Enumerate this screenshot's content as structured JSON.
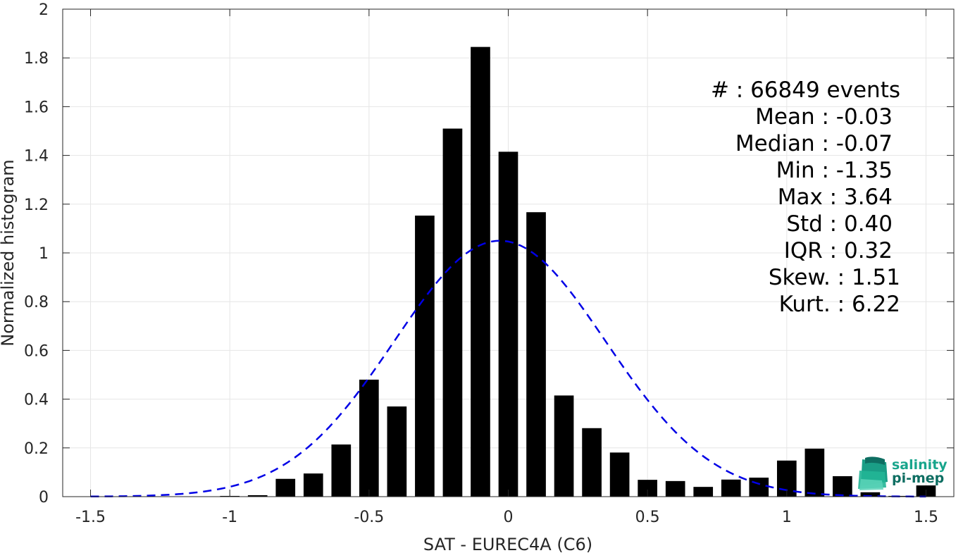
{
  "chart_data": {
    "type": "bar",
    "xlabel": "SAT - EUREC4A (C6)",
    "ylabel": "Normalized histogram",
    "xlim": [
      -1.6,
      1.6
    ],
    "ylim": [
      0,
      2
    ],
    "grid": true,
    "x_ticks": [
      "-1.5",
      "-1",
      "-0.5",
      "0",
      "0.5",
      "1",
      "1.5"
    ],
    "x_tick_values": [
      -1.5,
      -1,
      -0.5,
      0,
      0.5,
      1,
      1.5
    ],
    "y_ticks": [
      "0",
      "0.2",
      "0.4",
      "0.6",
      "0.8",
      "1",
      "1.2",
      "1.4",
      "1.6",
      "1.8",
      "2"
    ],
    "y_tick_values": [
      0,
      0.2,
      0.4,
      0.6,
      0.8,
      1,
      1.2,
      1.4,
      1.6,
      1.8,
      2
    ],
    "bar_color": "#000000",
    "bar_width": 0.07,
    "bars": {
      "x": [
        -1.5,
        -1.4,
        -1.3,
        -1.2,
        -1.1,
        -1.0,
        -0.9,
        -0.8,
        -0.7,
        -0.6,
        -0.5,
        -0.4,
        -0.3,
        -0.2,
        -0.1,
        0.0,
        0.1,
        0.2,
        0.3,
        0.4,
        0.5,
        0.6,
        0.7,
        0.8,
        0.9,
        1.0,
        1.1,
        1.2,
        1.3,
        1.4,
        1.5
      ],
      "y": [
        0,
        0,
        0,
        0,
        0,
        0.003,
        0.006,
        0.073,
        0.095,
        0.214,
        0.48,
        0.37,
        1.153,
        1.51,
        1.845,
        1.415,
        1.167,
        0.415,
        0.281,
        0.181,
        0.069,
        0.064,
        0.04,
        0.07,
        0.078,
        0.148,
        0.197,
        0.084,
        0.018,
        0.003,
        0.046
      ]
    },
    "fit_curve": {
      "style": "dashed",
      "color": "#0000e6",
      "mean": -0.03,
      "std": 0.38,
      "x_range": [
        -1.5,
        1.5
      ]
    },
    "stats": [
      {
        "label": "#  : 66849 events"
      },
      {
        "label": "Mean : -0.03"
      },
      {
        "label": "Median : -0.07"
      },
      {
        "label": "Min : -1.35"
      },
      {
        "label": "Max : 3.64"
      },
      {
        "label": "Std : 0.40"
      },
      {
        "label": "IQR : 0.32"
      },
      {
        "label": "Skew. : 1.51"
      },
      {
        "label": "Kurt. : 6.22"
      }
    ]
  },
  "logo": {
    "line1": "salinity",
    "line2": "pi-mep",
    "color_primary": "#18a58c",
    "color_secondary": "#0e6e62"
  }
}
